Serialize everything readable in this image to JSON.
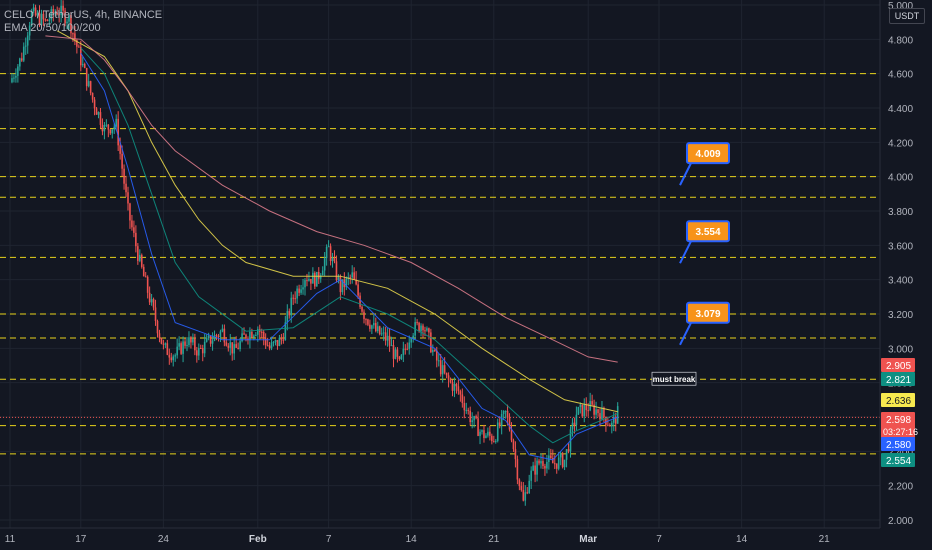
{
  "header": {
    "symbol_line": "CELO / TetherUS, 4h, BINANCE",
    "indicator_line": "EMA 20/50/100/200"
  },
  "currency_badge": "USDT",
  "colors": {
    "background": "#131722",
    "grid": "#1f2430",
    "axis_text": "#b2b5be",
    "up_candle": "#26a69a",
    "down_candle": "#ef5350",
    "level_line": "#e8d31b",
    "ema20": "#2962ff",
    "ema50": "#0e8f82",
    "ema100": "#e5d54b",
    "ema200": "#d97a8a",
    "target_box": "#f7931a",
    "target_border": "#2962ff",
    "arrow": "#2962ff"
  },
  "chart_data": {
    "type": "candlestick",
    "y_axis": {
      "min": 2.0,
      "max": 5.0,
      "ticks": [
        5.0,
        4.8,
        4.6,
        4.4,
        4.2,
        4.0,
        3.8,
        3.6,
        3.4,
        3.2,
        3.0,
        2.8,
        2.6,
        2.4,
        2.2,
        2.0
      ],
      "tick_labels": [
        "5.000",
        "4.800",
        "4.600",
        "4.400",
        "4.200",
        "4.000",
        "3.800",
        "3.600",
        "3.400",
        "3.200",
        "3.000",
        "2.800",
        "2.600",
        "2.400",
        "2.200",
        "2.000"
      ]
    },
    "x_axis": {
      "tick_labels": [
        "11",
        "17",
        "24",
        "Feb",
        "7",
        "14",
        "21",
        "Mar",
        "7",
        "14",
        "21"
      ],
      "tick_days": [
        0,
        6,
        13,
        21,
        27,
        34,
        41,
        49,
        55,
        62,
        69
      ]
    },
    "price_path": [
      [
        0,
        4.55
      ],
      [
        1,
        4.7
      ],
      [
        1.8,
        4.95
      ],
      [
        3,
        4.9
      ],
      [
        4,
        4.97
      ],
      [
        5,
        4.92
      ],
      [
        6,
        4.68
      ],
      [
        7,
        4.45
      ],
      [
        8,
        4.28
      ],
      [
        9,
        4.3
      ],
      [
        10,
        3.8
      ],
      [
        11,
        3.5
      ],
      [
        12,
        3.25
      ],
      [
        13,
        3.0
      ],
      [
        14,
        2.96
      ],
      [
        15,
        3.05
      ],
      [
        16,
        2.98
      ],
      [
        17,
        3.05
      ],
      [
        18,
        3.1
      ],
      [
        19,
        2.98
      ],
      [
        20,
        3.08
      ],
      [
        21,
        3.12
      ],
      [
        22,
        3.0
      ],
      [
        23,
        3.05
      ],
      [
        24,
        3.3
      ],
      [
        25,
        3.42
      ],
      [
        26,
        3.4
      ],
      [
        27,
        3.58
      ],
      [
        28,
        3.35
      ],
      [
        29,
        3.42
      ],
      [
        30,
        3.2
      ],
      [
        31,
        3.1
      ],
      [
        32,
        3.05
      ],
      [
        33,
        2.9
      ],
      [
        34,
        3.1
      ],
      [
        35,
        3.15
      ],
      [
        36,
        2.95
      ],
      [
        37,
        2.82
      ],
      [
        38,
        2.75
      ],
      [
        39,
        2.6
      ],
      [
        40,
        2.5
      ],
      [
        41,
        2.48
      ],
      [
        42,
        2.62
      ],
      [
        42.5,
        2.5
      ],
      [
        43,
        2.28
      ],
      [
        43.5,
        2.1
      ],
      [
        44,
        2.25
      ],
      [
        45,
        2.35
      ],
      [
        46,
        2.33
      ],
      [
        47,
        2.35
      ],
      [
        48,
        2.62
      ],
      [
        49,
        2.66
      ],
      [
        50,
        2.63
      ],
      [
        51,
        2.55
      ],
      [
        51.5,
        2.62
      ]
    ],
    "price_levels": [
      4.6,
      4.28,
      4.0,
      3.88,
      3.53,
      3.2,
      3.06,
      2.82,
      2.55,
      2.385
    ],
    "emas": [
      {
        "name": "EMA 20",
        "color": "#2962ff",
        "points": [
          [
            6,
            4.72
          ],
          [
            8,
            4.5
          ],
          [
            10,
            4.05
          ],
          [
            12,
            3.55
          ],
          [
            14,
            3.15
          ],
          [
            18,
            3.05
          ],
          [
            22,
            3.05
          ],
          [
            26,
            3.32
          ],
          [
            28,
            3.4
          ],
          [
            32,
            3.12
          ],
          [
            36,
            3.0
          ],
          [
            40,
            2.65
          ],
          [
            42,
            2.58
          ],
          [
            44,
            2.38
          ],
          [
            46,
            2.35
          ],
          [
            48,
            2.5
          ],
          [
            51.5,
            2.6
          ]
        ]
      },
      {
        "name": "EMA 50",
        "color": "#0e8f82",
        "points": [
          [
            6,
            4.75
          ],
          [
            8,
            4.6
          ],
          [
            10,
            4.3
          ],
          [
            12,
            3.9
          ],
          [
            14,
            3.5
          ],
          [
            16,
            3.3
          ],
          [
            20,
            3.1
          ],
          [
            24,
            3.12
          ],
          [
            28,
            3.3
          ],
          [
            32,
            3.2
          ],
          [
            36,
            3.05
          ],
          [
            40,
            2.8
          ],
          [
            44,
            2.55
          ],
          [
            46,
            2.45
          ],
          [
            48,
            2.52
          ],
          [
            51.5,
            2.62
          ]
        ]
      },
      {
        "name": "EMA 100",
        "color": "#e5d54b",
        "points": [
          [
            4,
            4.85
          ],
          [
            8,
            4.7
          ],
          [
            10,
            4.5
          ],
          [
            12,
            4.2
          ],
          [
            14,
            3.95
          ],
          [
            16,
            3.75
          ],
          [
            18,
            3.6
          ],
          [
            20,
            3.5
          ],
          [
            24,
            3.42
          ],
          [
            28,
            3.42
          ],
          [
            32,
            3.35
          ],
          [
            36,
            3.2
          ],
          [
            40,
            3.0
          ],
          [
            44,
            2.82
          ],
          [
            47,
            2.7
          ],
          [
            51.5,
            2.63
          ]
        ]
      },
      {
        "name": "EMA 200",
        "color": "#d97a8a",
        "points": [
          [
            3,
            4.82
          ],
          [
            6,
            4.8
          ],
          [
            8,
            4.68
          ],
          [
            10,
            4.5
          ],
          [
            12,
            4.3
          ],
          [
            14,
            4.15
          ],
          [
            18,
            3.95
          ],
          [
            22,
            3.8
          ],
          [
            26,
            3.68
          ],
          [
            30,
            3.6
          ],
          [
            34,
            3.5
          ],
          [
            38,
            3.35
          ],
          [
            42,
            3.18
          ],
          [
            46,
            3.05
          ],
          [
            49,
            2.95
          ],
          [
            51.5,
            2.92
          ]
        ]
      }
    ],
    "target_labels": [
      {
        "label": "4.009",
        "value": 4.009
      },
      {
        "label": "3.554",
        "value": 3.554
      },
      {
        "label": "3.079",
        "value": 3.079
      }
    ],
    "annotation": {
      "text": "must break",
      "value": 2.82
    },
    "price_tags": [
      {
        "label": "2.905",
        "value": 2.905,
        "color": "#ef5350"
      },
      {
        "label": "2.821",
        "value": 2.821,
        "color": "#0e8f82"
      },
      {
        "label": "2.636",
        "value": 2.636,
        "color": "#f7e94f"
      },
      {
        "label": "2.598",
        "value": 2.598,
        "color": "#ef5350",
        "sublabel": "03:27:16"
      },
      {
        "label": "2.580",
        "value": 2.58,
        "color": "#2962ff"
      },
      {
        "label": "2.554",
        "value": 2.554,
        "color": "#0e8f82"
      }
    ],
    "last_price": 2.598
  }
}
